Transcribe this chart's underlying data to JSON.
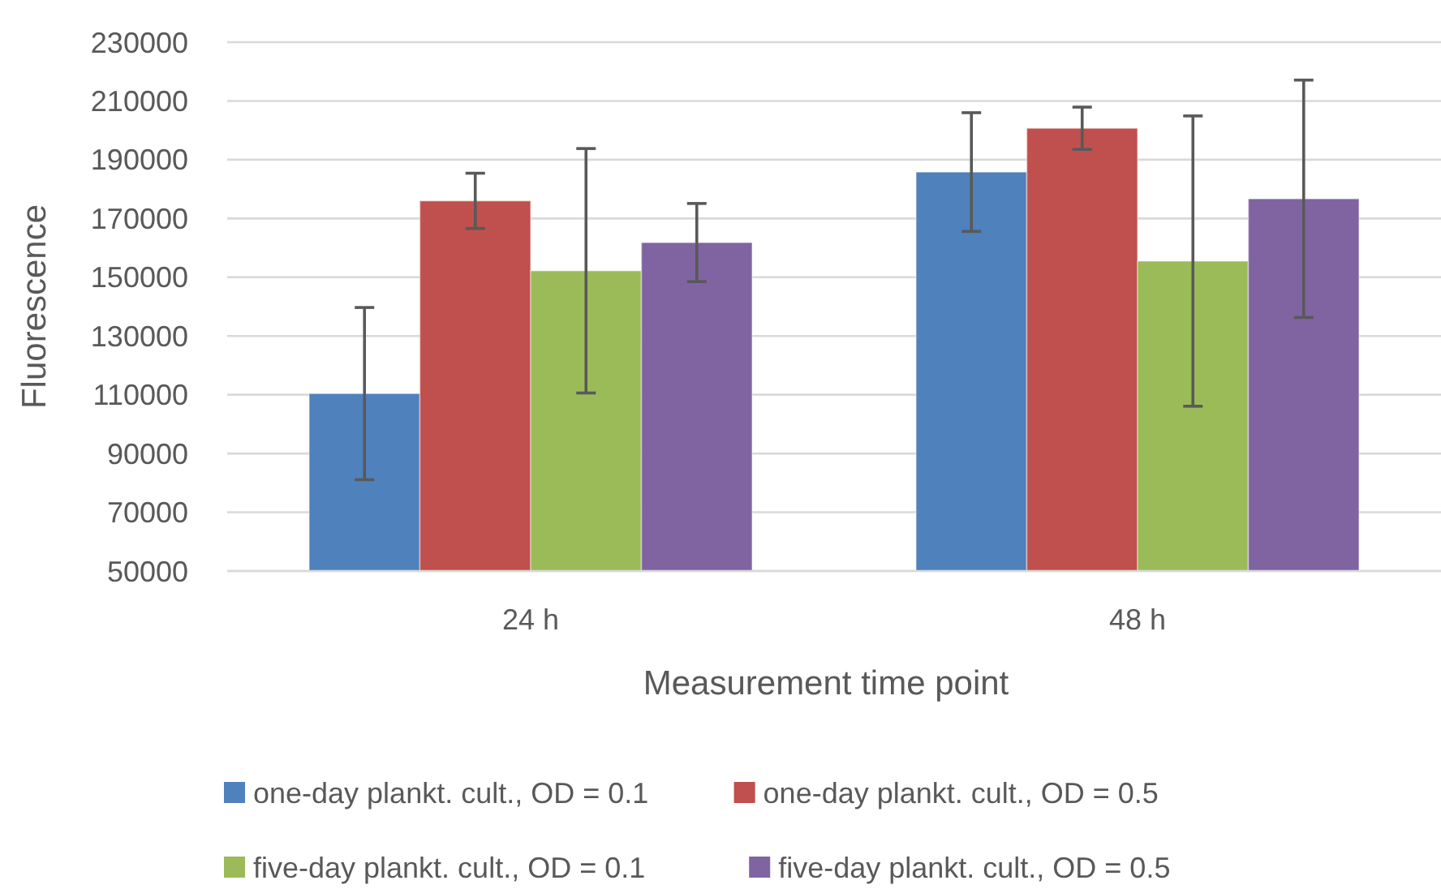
{
  "chart_data": {
    "type": "bar",
    "xlabel": "Measurement time point",
    "ylabel": "Fluorescence",
    "categories": [
      "24 h",
      "48 h"
    ],
    "series": [
      {
        "name": "one-day plankt. cult., OD = 0.1",
        "color": "#4f81bd",
        "values": [
          110400,
          185800
        ],
        "errors": [
          29300,
          20200
        ]
      },
      {
        "name": "one-day plankt. cult., OD = 0.5",
        "color": "#c0504d",
        "values": [
          176000,
          200700
        ],
        "errors": [
          9400,
          7200
        ]
      },
      {
        "name": "five-day plankt. cult., OD = 0.1",
        "color": "#9bbb59",
        "values": [
          152200,
          155500
        ],
        "errors": [
          41600,
          49400
        ]
      },
      {
        "name": "five-day plankt. cult., OD = 0.5",
        "color": "#8064a2",
        "values": [
          161800,
          176700
        ],
        "errors": [
          13300,
          40400
        ]
      }
    ],
    "ylim": [
      50000,
      230000
    ],
    "yticks": [
      50000,
      70000,
      90000,
      110000,
      130000,
      150000,
      170000,
      190000,
      210000,
      230000
    ],
    "grid": "y",
    "legend": "bottom"
  }
}
